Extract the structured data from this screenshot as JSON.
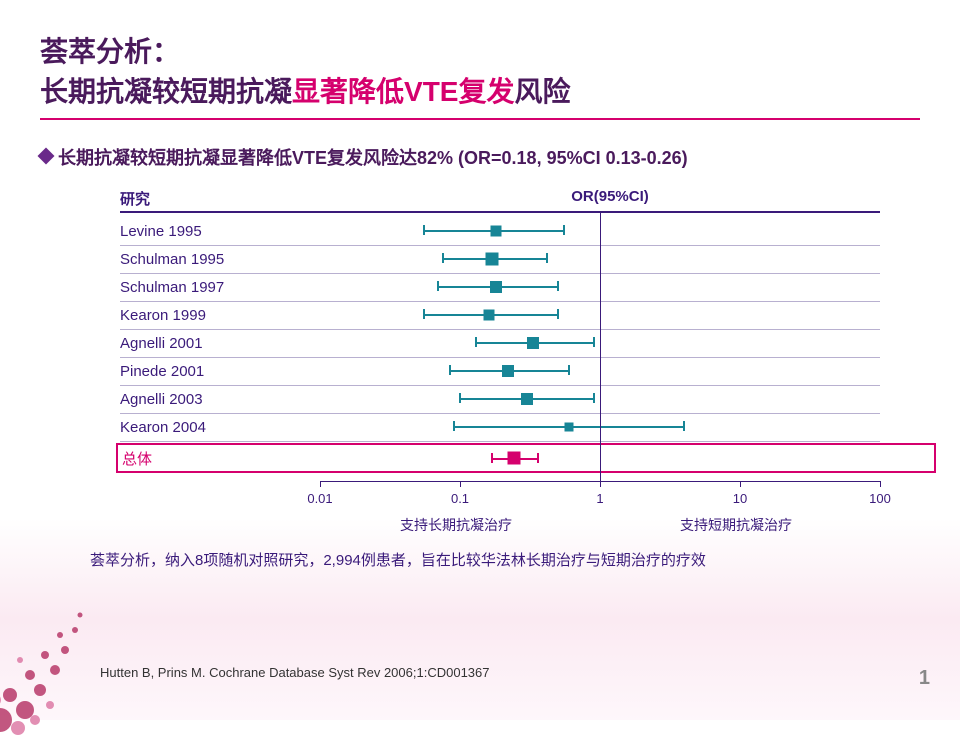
{
  "title": {
    "line1": "荟萃分析：",
    "line2_pre": "长期抗凝较短期抗凝",
    "line2_highlight": "显著降低VTE复发",
    "line2_post": "风险",
    "color_purple": "#4a1a5c",
    "color_magenta": "#d5006d",
    "fontsize": 28
  },
  "bullet": {
    "text": "长期抗凝较短期抗凝显著降低VTE复发风险达82% (OR=0.18, 95%CI 0.13-0.26)",
    "diamond_color": "#6a2a8a",
    "fontsize": 18
  },
  "chart": {
    "type": "forest-plot",
    "header_study": "研究",
    "header_or": "OR(95%CI)",
    "axis_color": "#3a1a7a",
    "series_color": "#178596",
    "overall_color": "#d5006d",
    "background_color": "#ffffff",
    "label_fontsize": 15,
    "tick_fontsize": 13,
    "log_scale": true,
    "xlim": [
      0.01,
      100
    ],
    "ticks": [
      0.01,
      0.1,
      1,
      10,
      100
    ],
    "tick_labels": [
      "0.01",
      "0.1",
      "1",
      "10",
      "100"
    ],
    "ref_line": 1,
    "rows": [
      {
        "label": "Levine 1995",
        "or": 0.18,
        "lo": 0.055,
        "hi": 0.55,
        "size": 11
      },
      {
        "label": "Schulman 1995",
        "or": 0.17,
        "lo": 0.075,
        "hi": 0.42,
        "size": 13
      },
      {
        "label": "Schulman 1997",
        "or": 0.18,
        "lo": 0.07,
        "hi": 0.5,
        "size": 12
      },
      {
        "label": "Kearon 1999",
        "or": 0.16,
        "lo": 0.055,
        "hi": 0.5,
        "size": 11
      },
      {
        "label": "Agnelli 2001",
        "or": 0.33,
        "lo": 0.13,
        "hi": 0.9,
        "size": 12
      },
      {
        "label": "Pinede 2001",
        "or": 0.22,
        "lo": 0.085,
        "hi": 0.6,
        "size": 12
      },
      {
        "label": "Agnelli 2003",
        "or": 0.3,
        "lo": 0.1,
        "hi": 0.9,
        "size": 12
      },
      {
        "label": "Kearon 2004",
        "or": 0.6,
        "lo": 0.09,
        "hi": 4.0,
        "size": 9
      }
    ],
    "overall": {
      "label": "总体",
      "or": 0.18,
      "lo": 0.13,
      "hi": 0.26,
      "size": 13
    },
    "axis_label_left": "支持长期抗凝治疗",
    "axis_label_right": "支持短期抗凝治疗"
  },
  "footer_note": "荟萃分析，纳入8项随机对照研究，2,994例患者，旨在比较华法林长期治疗与短期治疗的疗效",
  "citation": "Hutten B, Prins M. Cochrane Database Syst Rev 2006;1:CD001367",
  "page_number": "1"
}
